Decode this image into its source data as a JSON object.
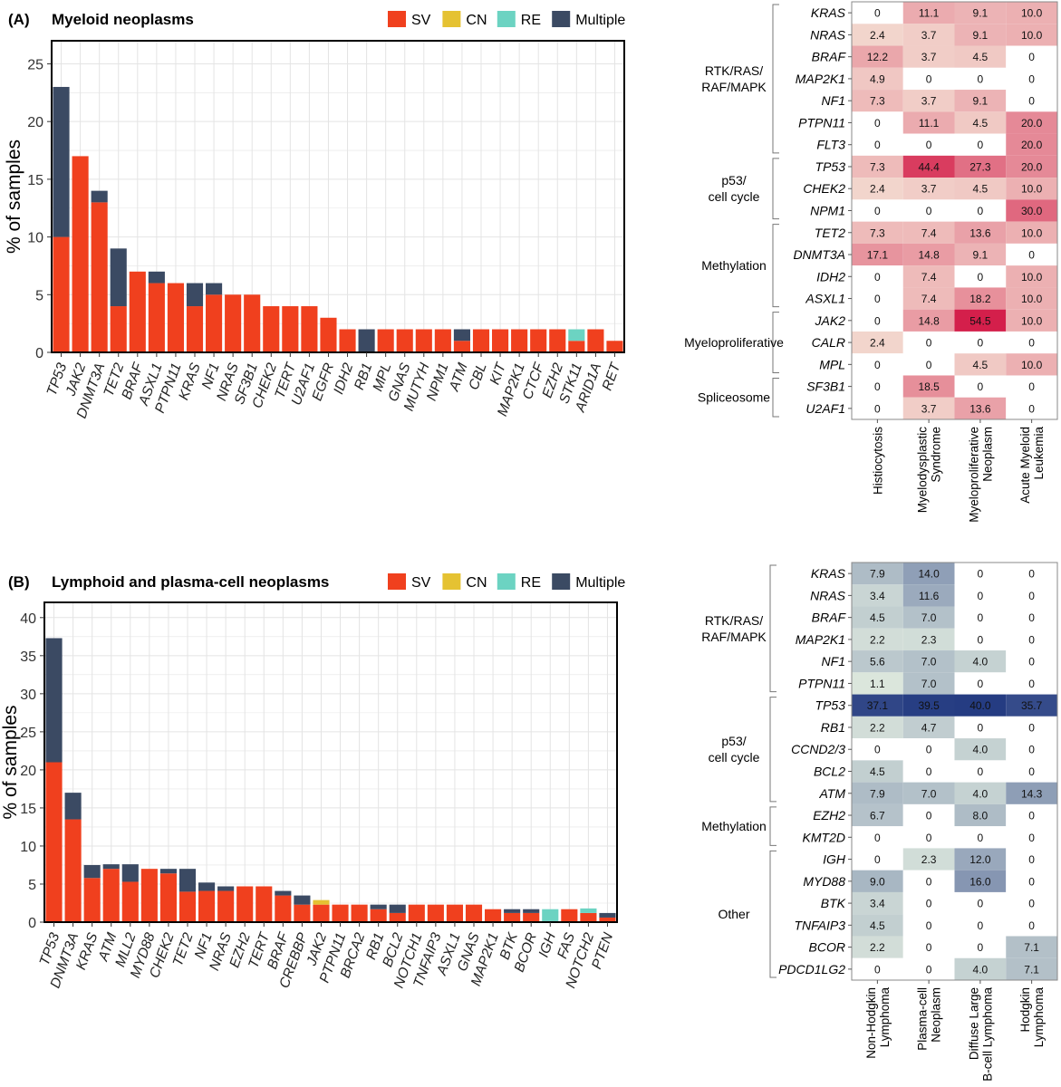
{
  "colors": {
    "SV": "#F0401E",
    "CN": "#E5C232",
    "RE": "#6CD3C2",
    "Multiple": "#3B4A63"
  },
  "chart_data": [
    {
      "type": "bar",
      "panel": "(A)",
      "title": "Myeloid neoplasms",
      "xlabel": "",
      "ylabel": "% of samples",
      "ylim": [
        0,
        27
      ],
      "yticks": [
        0,
        5,
        10,
        15,
        20,
        25
      ],
      "grid": true,
      "legend_position": "top-right",
      "categories": [
        "TP53",
        "JAK2",
        "DNMT3A",
        "TET2",
        "BRAF",
        "ASXL1",
        "PTPN11",
        "KRAS",
        "NF1",
        "NRAS",
        "SF3B1",
        "CHEK2",
        "TERT",
        "U2AF1",
        "EGFR",
        "IDH2",
        "RB1",
        "MPL",
        "GNAS",
        "MUTYH",
        "NPM1",
        "ATM",
        "CBL",
        "KIT",
        "MAP2K1",
        "CTCF",
        "EZH2",
        "STK11",
        "ARID1A",
        "RET"
      ],
      "series": [
        {
          "name": "SV",
          "color": "#F0401E",
          "values": [
            10,
            17,
            13,
            4,
            7,
            6,
            6,
            4,
            5,
            5,
            5,
            4,
            4,
            4,
            3,
            2,
            0,
            2,
            2,
            2,
            2,
            1,
            2,
            2,
            2,
            2,
            2,
            1,
            2,
            1
          ]
        },
        {
          "name": "CN",
          "color": "#E5C232",
          "values": [
            0,
            0,
            0,
            0,
            0,
            0,
            0,
            0,
            0,
            0,
            0,
            0,
            0,
            0,
            0,
            0,
            0,
            0,
            0,
            0,
            0,
            0,
            0,
            0,
            0,
            0,
            0,
            0,
            0,
            0
          ]
        },
        {
          "name": "RE",
          "color": "#6CD3C2",
          "values": [
            0,
            0,
            0,
            0,
            0,
            0,
            0,
            0,
            0,
            0,
            0,
            0,
            0,
            0,
            0,
            0,
            0,
            0,
            0,
            0,
            0,
            0,
            0,
            0,
            0,
            0,
            0,
            1,
            0,
            0
          ]
        },
        {
          "name": "Multiple",
          "color": "#3B4A63",
          "values": [
            13,
            0,
            1,
            5,
            0,
            1,
            0,
            2,
            1,
            0,
            0,
            0,
            0,
            0,
            0,
            0,
            2,
            0,
            0,
            0,
            0,
            1,
            0,
            0,
            0,
            0,
            0,
            0,
            0,
            0
          ]
        }
      ]
    },
    {
      "type": "heatmap",
      "panel": "(A)",
      "color_low": "#F5E8DA",
      "color_high": "#D41F4B",
      "vmax": 54.5,
      "columns": [
        "Histiocytosis",
        "Myelodysplastic\nSyndrome",
        "Myeloproliferative\nNeoplasm",
        "Acute Myeloid\nLeukemia"
      ],
      "rows": [
        "KRAS",
        "NRAS",
        "BRAF",
        "MAP2K1",
        "NF1",
        "PTPN11",
        "FLT3",
        "TP53",
        "CHEK2",
        "NPM1",
        "TET2",
        "DNMT3A",
        "IDH2",
        "ASXL1",
        "JAK2",
        "CALR",
        "MPL",
        "SF3B1",
        "U2AF1"
      ],
      "groups": [
        {
          "label": "RTK/RAS/\nRAF/MAPK",
          "start": 0,
          "end": 6
        },
        {
          "label": "p53/\ncell cycle",
          "start": 7,
          "end": 9
        },
        {
          "label": "Methylation",
          "start": 10,
          "end": 13
        },
        {
          "label": "Myeloproliferative",
          "start": 14,
          "end": 16
        },
        {
          "label": "Spliceosome",
          "start": 17,
          "end": 18
        }
      ],
      "values": [
        [
          "0",
          "11.1",
          "9.1",
          "10.0"
        ],
        [
          "2.4",
          "3.7",
          "9.1",
          "10.0"
        ],
        [
          "12.2",
          "3.7",
          "4.5",
          "0"
        ],
        [
          "4.9",
          "0",
          "0",
          "0"
        ],
        [
          "7.3",
          "3.7",
          "9.1",
          "0"
        ],
        [
          "0",
          "11.1",
          "4.5",
          "20.0"
        ],
        [
          "0",
          "0",
          "0",
          "20.0"
        ],
        [
          "7.3",
          "44.4",
          "27.3",
          "20.0"
        ],
        [
          "2.4",
          "3.7",
          "4.5",
          "10.0"
        ],
        [
          "0",
          "0",
          "0",
          "30.0"
        ],
        [
          "7.3",
          "7.4",
          "13.6",
          "10.0"
        ],
        [
          "17.1",
          "14.8",
          "9.1",
          "0"
        ],
        [
          "0",
          "7.4",
          "0",
          "10.0"
        ],
        [
          "0",
          "7.4",
          "18.2",
          "10.0"
        ],
        [
          "0",
          "14.8",
          "54.5",
          "10.0"
        ],
        [
          "2.4",
          "0",
          "0",
          "0"
        ],
        [
          "0",
          "0",
          "4.5",
          "10.0"
        ],
        [
          "0",
          "18.5",
          "0",
          "0"
        ],
        [
          "0",
          "3.7",
          "13.6",
          "0"
        ]
      ]
    },
    {
      "type": "bar",
      "panel": "(B)",
      "title": "Lymphoid and plasma-cell neoplasms",
      "xlabel": "",
      "ylabel": "% of samples",
      "ylim": [
        0,
        42
      ],
      "yticks": [
        0,
        5,
        10,
        15,
        20,
        25,
        30,
        35,
        40
      ],
      "grid": true,
      "legend_position": "top-right",
      "categories": [
        "TP53",
        "DNMT3A",
        "KRAS",
        "ATM",
        "MLL2",
        "MYD88",
        "CHEK2",
        "TET2",
        "NF1",
        "NRAS",
        "EZH2",
        "TERT",
        "BRAF",
        "CREBBP",
        "JAK2",
        "PTPN11",
        "BRCA2",
        "RB1",
        "BCL2",
        "NOTCH1",
        "TNFAIP3",
        "ASXL1",
        "GNAS",
        "MAP2K1",
        "BTK",
        "BCOR",
        "IGH",
        "FAS",
        "NOTCH2",
        "PTEN"
      ],
      "series": [
        {
          "name": "SV",
          "color": "#F0401E",
          "values": [
            21,
            13.5,
            5.8,
            7,
            5.3,
            7,
            6.4,
            4,
            4.1,
            4.1,
            4.7,
            4.7,
            3.5,
            2.3,
            2.3,
            2.3,
            2.3,
            1.7,
            1.2,
            2.3,
            2.3,
            2.3,
            2.3,
            1.7,
            1.2,
            1.2,
            0,
            1.7,
            1.2,
            0.6
          ]
        },
        {
          "name": "CN",
          "color": "#E5C232",
          "values": [
            0,
            0,
            0,
            0,
            0,
            0,
            0,
            0,
            0,
            0,
            0,
            0,
            0,
            0,
            0.6,
            0,
            0,
            0,
            0,
            0,
            0,
            0,
            0,
            0,
            0,
            0,
            0,
            0,
            0,
            0
          ]
        },
        {
          "name": "RE",
          "color": "#6CD3C2",
          "values": [
            0,
            0,
            0,
            0,
            0,
            0,
            0,
            0,
            0,
            0,
            0,
            0,
            0,
            0,
            0,
            0,
            0,
            0,
            0,
            0,
            0,
            0,
            0,
            0,
            0,
            0,
            1.7,
            0,
            0.6,
            0
          ]
        },
        {
          "name": "Multiple",
          "color": "#3B4A63",
          "values": [
            16.3,
            3.5,
            1.7,
            0.6,
            2.3,
            0,
            0.6,
            3,
            1.1,
            0.6,
            0,
            0,
            0.6,
            1.2,
            0,
            0,
            0,
            0.6,
            1.1,
            0,
            0,
            0,
            0,
            0,
            0.5,
            0.5,
            0,
            0,
            0,
            0.6
          ]
        }
      ]
    },
    {
      "type": "heatmap",
      "panel": "(B)",
      "color_low": "#E8F2E3",
      "color_high": "#253C82",
      "vmax": 40.0,
      "columns": [
        "Non-Hodgkin\nLymphoma",
        "Plasma-cell\nNeoplasm",
        "Diffuse Large\nB-cell Lymphoma",
        "Hodgkin\nLymphoma"
      ],
      "rows": [
        "KRAS",
        "NRAS",
        "BRAF",
        "MAP2K1",
        "NF1",
        "PTPN11",
        "TP53",
        "RB1",
        "CCND2/3",
        "BCL2",
        "ATM",
        "EZH2",
        "KMT2D",
        "IGH",
        "MYD88",
        "BTK",
        "TNFAIP3",
        "BCOR",
        "PDCD1LG2"
      ],
      "groups": [
        {
          "label": "RTK/RAS/\nRAF/MAPK",
          "start": 0,
          "end": 5
        },
        {
          "label": "p53/\ncell cycle",
          "start": 6,
          "end": 10
        },
        {
          "label": "Methylation",
          "start": 11,
          "end": 12
        },
        {
          "label": "Other",
          "start": 13,
          "end": 18
        }
      ],
      "values": [
        [
          "7.9",
          "14.0",
          "0",
          "0"
        ],
        [
          "3.4",
          "11.6",
          "0",
          "0"
        ],
        [
          "4.5",
          "7.0",
          "0",
          "0"
        ],
        [
          "2.2",
          "2.3",
          "0",
          "0"
        ],
        [
          "5.6",
          "7.0",
          "4.0",
          "0"
        ],
        [
          "1.1",
          "7.0",
          "0",
          "0"
        ],
        [
          "37.1",
          "39.5",
          "40.0",
          "35.7"
        ],
        [
          "2.2",
          "4.7",
          "0",
          "0"
        ],
        [
          "0",
          "0",
          "4.0",
          "0"
        ],
        [
          "4.5",
          "0",
          "0",
          "0"
        ],
        [
          "7.9",
          "7.0",
          "4.0",
          "14.3"
        ],
        [
          "6.7",
          "0",
          "8.0",
          "0"
        ],
        [
          "0",
          "0",
          "0",
          "0"
        ],
        [
          "0",
          "2.3",
          "12.0",
          "0"
        ],
        [
          "9.0",
          "0",
          "16.0",
          "0"
        ],
        [
          "3.4",
          "0",
          "0",
          "0"
        ],
        [
          "4.5",
          "0",
          "0",
          "0"
        ],
        [
          "2.2",
          "0",
          "0",
          "7.1"
        ],
        [
          "0",
          "0",
          "4.0",
          "7.1"
        ]
      ]
    }
  ]
}
